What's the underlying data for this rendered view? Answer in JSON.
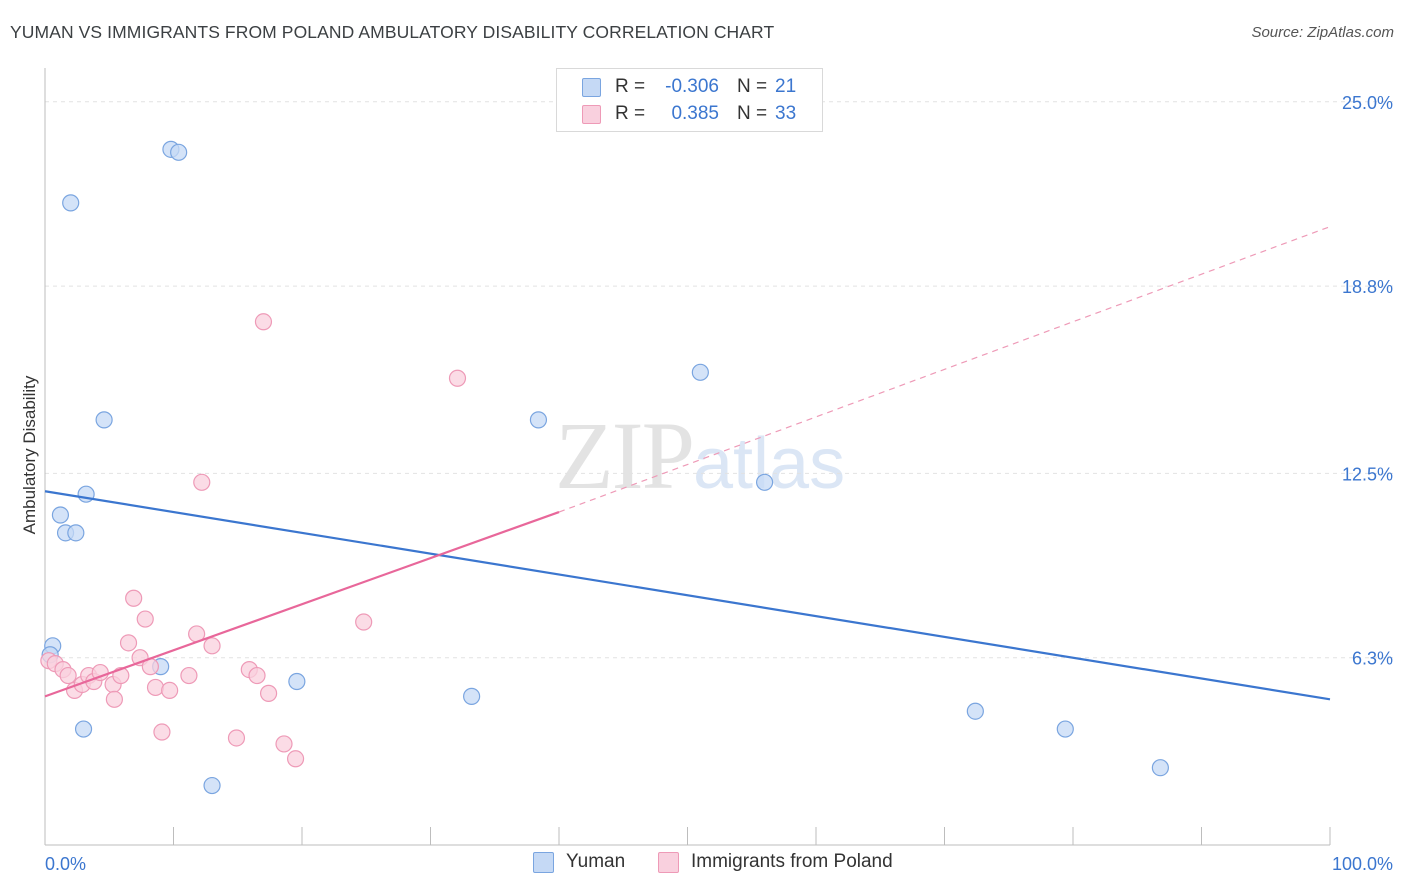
{
  "title": "YUMAN VS IMMIGRANTS FROM POLAND AMBULATORY DISABILITY CORRELATION CHART",
  "source": "Source: ZipAtlas.com",
  "watermark": {
    "zip": "ZIP",
    "atlas": "atlas"
  },
  "legend": {
    "rows": [
      {
        "r_label": "R =",
        "r_value": "-0.306",
        "n_label": "N =",
        "n_value": "21",
        "fill": "#c5d9f5",
        "stroke": "#7aa5e0"
      },
      {
        "r_label": "R =",
        "r_value": "0.385",
        "n_label": "N =",
        "n_value": "33",
        "fill": "#f9d0de",
        "stroke": "#ee9ab7"
      }
    ]
  },
  "bottom_legend": [
    {
      "label": "Yuman",
      "fill": "#c5d9f5",
      "stroke": "#7aa5e0"
    },
    {
      "label": "Immigrants from Poland",
      "fill": "#f9d0de",
      "stroke": "#ee9ab7"
    }
  ],
  "chart_data": {
    "type": "scatter",
    "title": "YUMAN VS IMMIGRANTS FROM POLAND AMBULATORY DISABILITY CORRELATION CHART",
    "xlabel": "",
    "ylabel": "Ambulatory Disability",
    "xlim": [
      0,
      100
    ],
    "ylim": [
      0,
      25.8
    ],
    "x_tick_labels": [
      "0.0%",
      "100.0%"
    ],
    "y_ticks": [
      6.3,
      12.5,
      18.8,
      25.0
    ],
    "y_tick_labels": [
      "6.3%",
      "12.5%",
      "18.8%",
      "25.0%"
    ],
    "grid": true,
    "series": [
      {
        "name": "Yuman",
        "color": "#3b76cf",
        "fill": "#c5d9f5",
        "stroke": "#7aa5e0",
        "trend": {
          "x": [
            0,
            100
          ],
          "y": [
            11.9,
            4.9
          ],
          "dashed_extension": false
        },
        "points": [
          {
            "x": 0.6,
            "y": 6.7
          },
          {
            "x": 0.4,
            "y": 6.4
          },
          {
            "x": 2.0,
            "y": 21.6
          },
          {
            "x": 9.8,
            "y": 23.4
          },
          {
            "x": 10.4,
            "y": 23.3
          },
          {
            "x": 4.6,
            "y": 14.3
          },
          {
            "x": 3.2,
            "y": 11.8
          },
          {
            "x": 1.2,
            "y": 11.1
          },
          {
            "x": 1.6,
            "y": 10.5
          },
          {
            "x": 2.4,
            "y": 10.5
          },
          {
            "x": 3.0,
            "y": 3.9
          },
          {
            "x": 9.0,
            "y": 6.0
          },
          {
            "x": 13.0,
            "y": 2.0
          },
          {
            "x": 19.6,
            "y": 5.5
          },
          {
            "x": 33.2,
            "y": 5.0
          },
          {
            "x": 38.4,
            "y": 14.3
          },
          {
            "x": 51.0,
            "y": 15.9
          },
          {
            "x": 56.0,
            "y": 12.2
          },
          {
            "x": 72.4,
            "y": 4.5
          },
          {
            "x": 79.4,
            "y": 3.9
          },
          {
            "x": 86.8,
            "y": 2.6
          }
        ]
      },
      {
        "name": "Immigrants from Poland",
        "color": "#e8679a",
        "fill": "#f9d0de",
        "stroke": "#ee9ab7",
        "trend": {
          "x": [
            0,
            40
          ],
          "y": [
            5.0,
            11.2
          ],
          "extension_x": [
            40,
            100
          ],
          "extension_y": [
            11.2,
            20.8
          ]
        },
        "points": [
          {
            "x": 0.3,
            "y": 6.2
          },
          {
            "x": 0.8,
            "y": 6.1
          },
          {
            "x": 1.4,
            "y": 5.9
          },
          {
            "x": 1.8,
            "y": 5.7
          },
          {
            "x": 2.3,
            "y": 5.2
          },
          {
            "x": 2.9,
            "y": 5.4
          },
          {
            "x": 3.4,
            "y": 5.7
          },
          {
            "x": 3.8,
            "y": 5.5
          },
          {
            "x": 4.3,
            "y": 5.8
          },
          {
            "x": 5.3,
            "y": 5.4
          },
          {
            "x": 5.4,
            "y": 4.9
          },
          {
            "x": 5.9,
            "y": 5.7
          },
          {
            "x": 6.5,
            "y": 6.8
          },
          {
            "x": 6.9,
            "y": 8.3
          },
          {
            "x": 7.4,
            "y": 6.3
          },
          {
            "x": 7.8,
            "y": 7.6
          },
          {
            "x": 8.2,
            "y": 6.0
          },
          {
            "x": 8.6,
            "y": 5.3
          },
          {
            "x": 9.1,
            "y": 3.8
          },
          {
            "x": 9.7,
            "y": 5.2
          },
          {
            "x": 11.2,
            "y": 5.7
          },
          {
            "x": 11.8,
            "y": 7.1
          },
          {
            "x": 12.2,
            "y": 12.2
          },
          {
            "x": 13.0,
            "y": 6.7
          },
          {
            "x": 14.9,
            "y": 3.6
          },
          {
            "x": 15.9,
            "y": 5.9
          },
          {
            "x": 16.5,
            "y": 5.7
          },
          {
            "x": 17.0,
            "y": 17.6
          },
          {
            "x": 17.4,
            "y": 5.1
          },
          {
            "x": 18.6,
            "y": 3.4
          },
          {
            "x": 19.5,
            "y": 2.9
          },
          {
            "x": 24.8,
            "y": 7.5
          },
          {
            "x": 32.1,
            "y": 15.7
          }
        ]
      }
    ]
  }
}
